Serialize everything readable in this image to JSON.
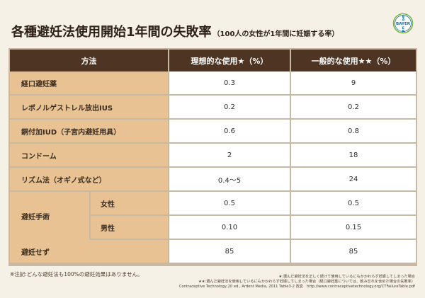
{
  "title": {
    "main": "各種避妊法使用開始1年間の失敗率",
    "sub": "（100人の女性が1年間に妊娠する率）"
  },
  "logo": {
    "text": "BAYER",
    "ring_color": "#7cb342",
    "text_color": "#0f6aa6"
  },
  "table": {
    "headers": {
      "method": "方法",
      "ideal": "理想的な使用★（%）",
      "typical": "一般的な使用★★（%）"
    },
    "rows": [
      {
        "method": "経口避妊薬",
        "ideal": "0.3",
        "typical": "9"
      },
      {
        "method": "レボノルゲストレル放出IUS",
        "ideal": "0.2",
        "typical": "0.2"
      },
      {
        "method": "銅付加IUD（子宮内避妊用具）",
        "ideal": "0.6",
        "typical": "0.8"
      },
      {
        "method": "コンドーム",
        "ideal": "2",
        "typical": "18"
      },
      {
        "method": "リズム法（オギノ式など）",
        "ideal": "0.4〜5",
        "typical": "24"
      }
    ],
    "sterilization": {
      "label": "避妊手術",
      "female": {
        "label": "女性",
        "ideal": "0.5",
        "typical": "0.5"
      },
      "male": {
        "label": "男性",
        "ideal": "0.10",
        "typical": "0.15"
      }
    },
    "none": {
      "method": "避妊せず",
      "ideal": "85",
      "typical": "85"
    }
  },
  "notes": {
    "left": "※注記:どんな避妊法も100%の避妊効果はありません。",
    "star1": "★:選んだ避妊法を正しく続けて使用しているにもかかわらず妊娠してしまった場合",
    "star2": "★★:選んだ避妊法を使用しているにもかかわらず妊娠してしまった場合（経口避妊薬については、飲み忘れを含めた場合の失敗率）",
    "source": "Contraceptive Technology,20 ed., Ardent Media, 2011 Table3-2 改変　http://www.contraceptivetechnology.org/CTFailureTable.pdf"
  }
}
